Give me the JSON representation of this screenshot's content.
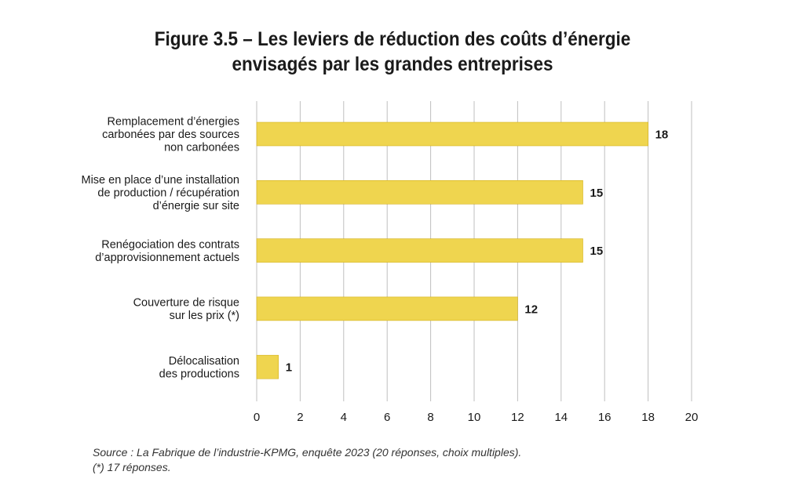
{
  "title_lines": [
    "Figure 3.5 – Les leviers de réduction des coûts d’énergie",
    "envisagés par les grandes entreprises"
  ],
  "chart_data": {
    "type": "bar",
    "orientation": "horizontal",
    "categories": [
      [
        "Remplacement d’énergies",
        "carbonées par des sources",
        "non carbonées"
      ],
      [
        "Mise en place d’une installation",
        "de production / récupération",
        "d’énergie sur site"
      ],
      [
        "Renégociation des contrats",
        "d’approvisionnement actuels"
      ],
      [
        "Couverture de risque",
        "sur les prix (*)"
      ],
      [
        "Délocalisation",
        "des productions"
      ]
    ],
    "values": [
      18,
      15,
      15,
      12,
      1
    ],
    "xlim": [
      0,
      20
    ],
    "xticks": [
      0,
      2,
      4,
      6,
      8,
      10,
      12,
      14,
      16,
      18,
      20
    ],
    "grid": "vertical",
    "bar_color": "#efd54f",
    "bar_edge_color": "#d4b11a",
    "data_labels": true
  },
  "notes": [
    "Source : La Fabrique de l’industrie-KPMG, enquête 2023 (20 réponses, choix multiples).",
    "(*) 17 réponses."
  ]
}
